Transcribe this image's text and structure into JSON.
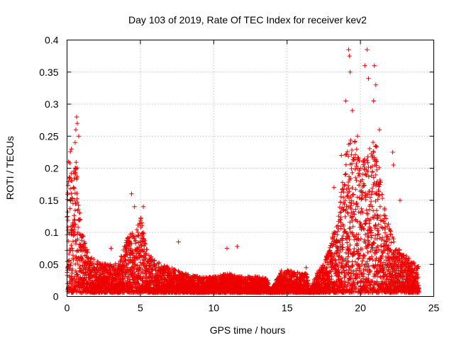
{
  "chart_data": {
    "type": "scatter",
    "title": "Day 103 of 2019, Rate Of TEC Index for receiver kev2",
    "xlabel": "GPS time / hours",
    "ylabel": "ROTI / TECUs",
    "xlim": [
      0,
      25
    ],
    "ylim": [
      0,
      0.4
    ],
    "grid": true,
    "marker": "plus",
    "xticks": [
      {
        "value": 0,
        "label": "0"
      },
      {
        "value": 5,
        "label": "5"
      },
      {
        "value": 10,
        "label": "10"
      },
      {
        "value": 15,
        "label": "15"
      },
      {
        "value": 20,
        "label": "20"
      },
      {
        "value": 25,
        "label": "25"
      }
    ],
    "yticks": [
      {
        "value": 0,
        "label": "0"
      },
      {
        "value": 0.05,
        "label": "0.05"
      },
      {
        "value": 0.1,
        "label": "0.1"
      },
      {
        "value": 0.15,
        "label": "0.15"
      },
      {
        "value": 0.2,
        "label": "0.2"
      },
      {
        "value": 0.25,
        "label": "0.25"
      },
      {
        "value": 0.3,
        "label": "0.3"
      },
      {
        "value": 0.35,
        "label": "0.35"
      },
      {
        "value": 0.4,
        "label": "0.4"
      }
    ],
    "series": [
      {
        "name": "ROTI",
        "color": "#ee0000",
        "envelope_hours": [
          0,
          0.1,
          0.2,
          0.3,
          0.4,
          0.5,
          0.6,
          0.8,
          1.0,
          1.3,
          1.6,
          2.0,
          2.5,
          3.0,
          3.5,
          4.0,
          4.3,
          4.6,
          5.0,
          5.3,
          5.6,
          6.0,
          6.5,
          7.0,
          7.5,
          8.0,
          9.0,
          10.0,
          11.0,
          12.0,
          13.0,
          13.7,
          13.8,
          14.5,
          15.0,
          16.0,
          16.4,
          16.5,
          17.0,
          17.5,
          18.0,
          18.5,
          19.0,
          19.5,
          20.0,
          20.5,
          21.0,
          21.5,
          22.0,
          22.5,
          23.0,
          23.5,
          24.0
        ],
        "envelope_roti": [
          0.15,
          0.2,
          0.23,
          0.2,
          0.18,
          0.22,
          0.25,
          0.15,
          0.1,
          0.07,
          0.06,
          0.05,
          0.045,
          0.045,
          0.045,
          0.08,
          0.1,
          0.09,
          0.12,
          0.09,
          0.06,
          0.05,
          0.045,
          0.04,
          0.035,
          0.03,
          0.025,
          0.025,
          0.03,
          0.025,
          0.025,
          0.022,
          0.0,
          0.03,
          0.035,
          0.03,
          0.03,
          0.0,
          0.03,
          0.045,
          0.08,
          0.12,
          0.22,
          0.25,
          0.2,
          0.22,
          0.25,
          0.15,
          0.1,
          0.07,
          0.06,
          0.05,
          0.04
        ],
        "spikes": [
          {
            "x": 0.1,
            "y": 0.21
          },
          {
            "x": 0.3,
            "y": 0.23
          },
          {
            "x": 0.55,
            "y": 0.24
          },
          {
            "x": 0.6,
            "y": 0.26
          },
          {
            "x": 0.65,
            "y": 0.28
          },
          {
            "x": 0.7,
            "y": 0.27
          },
          {
            "x": 0.8,
            "y": 0.25
          },
          {
            "x": 4.4,
            "y": 0.16
          },
          {
            "x": 4.6,
            "y": 0.14
          },
          {
            "x": 5.2,
            "y": 0.14
          },
          {
            "x": 3.0,
            "y": 0.075
          },
          {
            "x": 7.6,
            "y": 0.085
          },
          {
            "x": 10.9,
            "y": 0.075
          },
          {
            "x": 11.6,
            "y": 0.078
          },
          {
            "x": 14.6,
            "y": 0.04
          },
          {
            "x": 16.3,
            "y": 0.045
          },
          {
            "x": 18.2,
            "y": 0.17
          },
          {
            "x": 18.7,
            "y": 0.22
          },
          {
            "x": 19.0,
            "y": 0.305
          },
          {
            "x": 19.2,
            "y": 0.385
          },
          {
            "x": 19.25,
            "y": 0.375
          },
          {
            "x": 19.3,
            "y": 0.35
          },
          {
            "x": 19.45,
            "y": 0.29
          },
          {
            "x": 19.8,
            "y": 0.25
          },
          {
            "x": 20.0,
            "y": 0.2
          },
          {
            "x": 20.3,
            "y": 0.36
          },
          {
            "x": 20.45,
            "y": 0.385
          },
          {
            "x": 20.55,
            "y": 0.34
          },
          {
            "x": 20.9,
            "y": 0.305
          },
          {
            "x": 20.95,
            "y": 0.36
          },
          {
            "x": 21.05,
            "y": 0.33
          },
          {
            "x": 21.3,
            "y": 0.26
          },
          {
            "x": 22.2,
            "y": 0.225
          },
          {
            "x": 22.25,
            "y": 0.205
          },
          {
            "x": 22.7,
            "y": 0.15
          }
        ]
      }
    ]
  }
}
